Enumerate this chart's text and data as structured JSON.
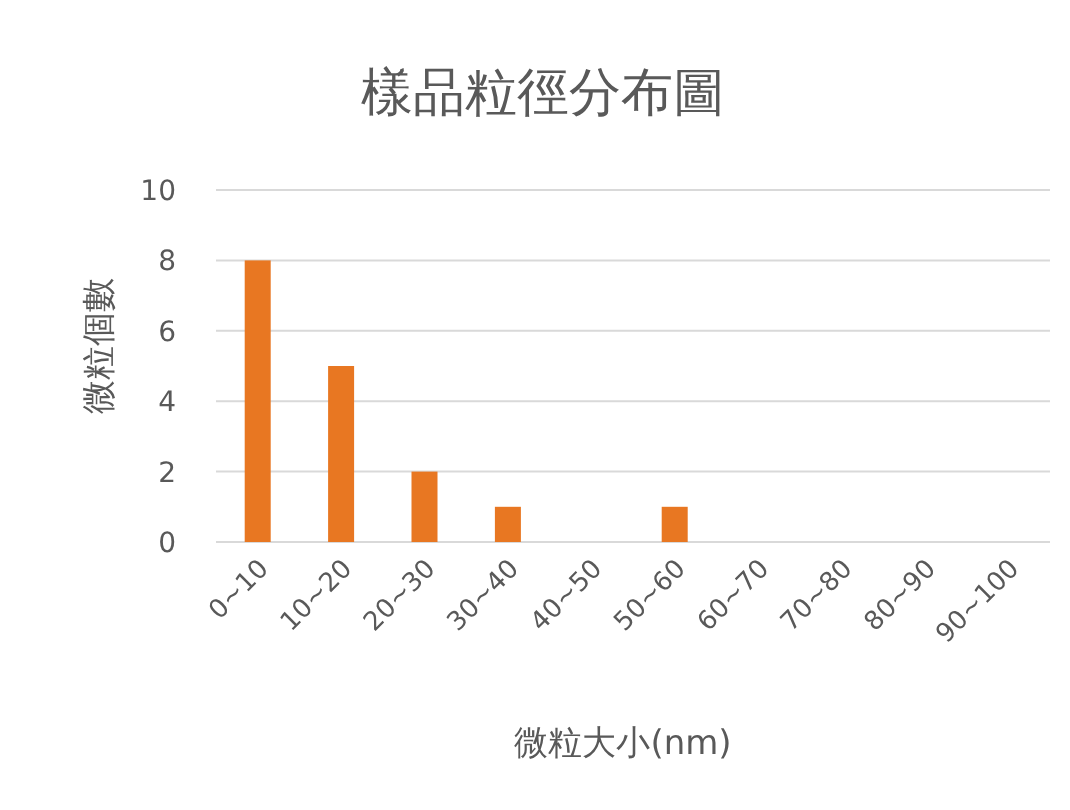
{
  "chart_data": {
    "type": "bar",
    "title": "樣品粒徑分布圖",
    "xlabel": "微粒大小(nm)",
    "ylabel": "微粒個數",
    "categories": [
      "0~10",
      "10~20",
      "20~30",
      "30~40",
      "40~50",
      "50~60",
      "60~70",
      "70~80",
      "80~90",
      "90~100"
    ],
    "values": [
      8,
      5,
      2,
      1,
      0,
      1,
      0,
      0,
      0,
      0
    ],
    "color": "#e87722",
    "ylim": [
      0,
      10
    ],
    "yticks": [
      0,
      2,
      4,
      6,
      8,
      10
    ],
    "grid": "y"
  }
}
